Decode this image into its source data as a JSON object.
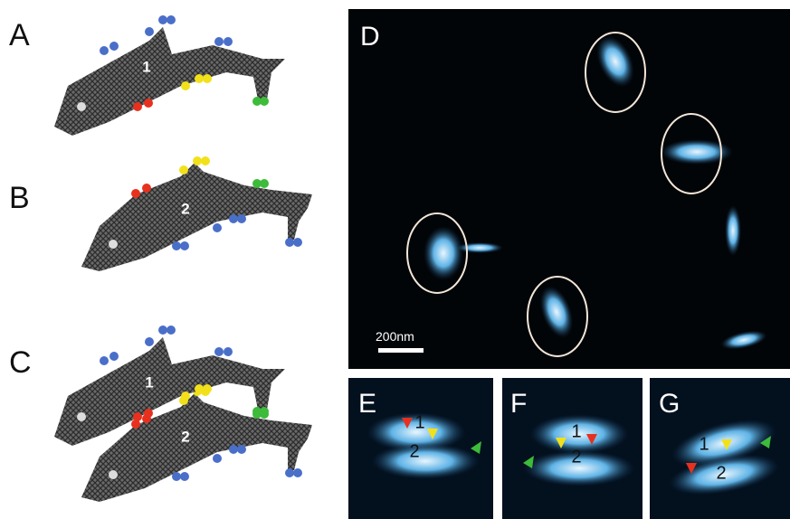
{
  "panels": [
    {
      "label": "A",
      "numbers": [
        "1"
      ]
    },
    {
      "label": "B",
      "numbers": [
        "2"
      ]
    },
    {
      "label": "C",
      "numbers": [
        "1",
        "2"
      ]
    }
  ],
  "afm": {
    "label": "D",
    "scale_bar": "200nm"
  },
  "insets": [
    {
      "label": "E",
      "numbers": [
        "1",
        "2"
      ]
    },
    {
      "label": "F",
      "numbers": [
        "1",
        "2"
      ]
    },
    {
      "label": "G",
      "numbers": [
        "1",
        "2"
      ]
    }
  ]
}
